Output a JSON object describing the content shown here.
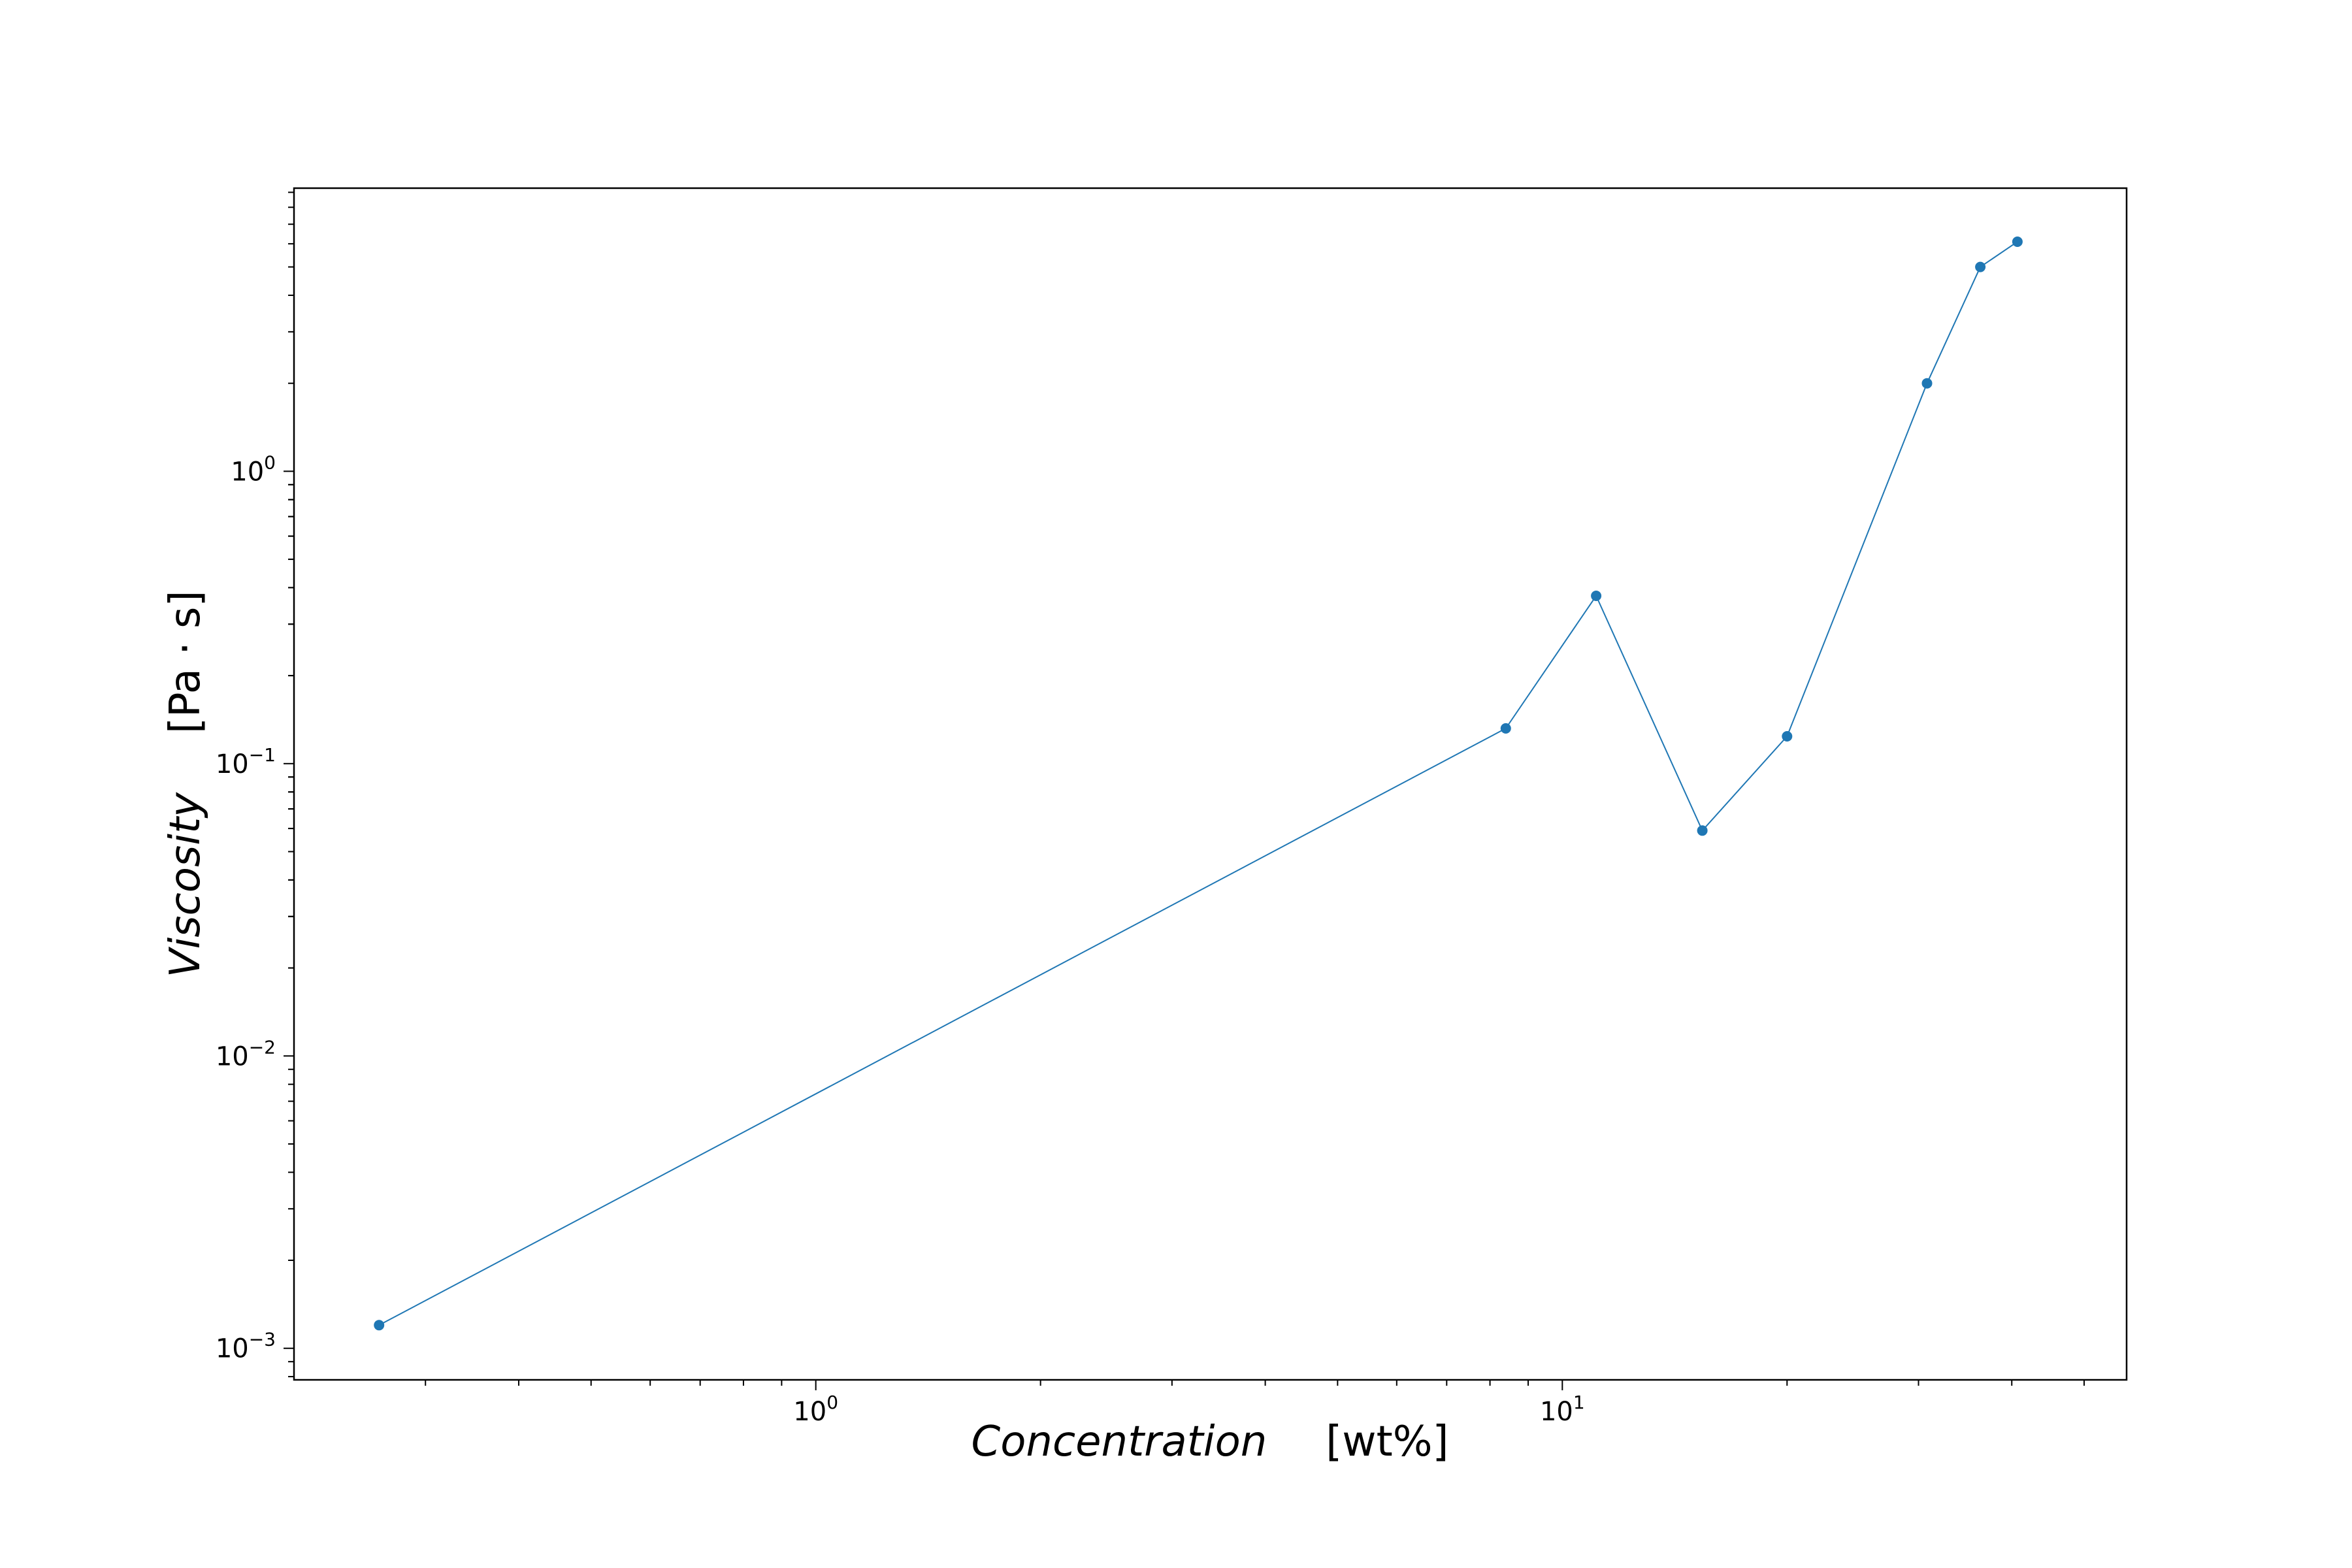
{
  "chart_data": {
    "type": "line",
    "x_scale": "log",
    "y_scale": "log",
    "xlim": [
      0.2,
      57
    ],
    "ylim": [
      0.00078,
      9.3
    ],
    "grid": false,
    "xlabel": {
      "main": "Concentration",
      "unit": "[wt%]"
    },
    "ylabel": {
      "main": "Viscosity",
      "unit": "[Pa · s]"
    },
    "x_ticks": [
      {
        "value": 1,
        "base": "10",
        "exp": "0"
      },
      {
        "value": 10,
        "base": "10",
        "exp": "1"
      }
    ],
    "y_ticks": [
      {
        "value": 0.001,
        "base": "10",
        "exp": "−3"
      },
      {
        "value": 0.01,
        "base": "10",
        "exp": "−2"
      },
      {
        "value": 0.1,
        "base": "10",
        "exp": "−1"
      },
      {
        "value": 1,
        "base": "10",
        "exp": "0"
      }
    ],
    "series": [
      {
        "color": "#1f77b4",
        "x": [
          0.26,
          8.4,
          11.1,
          15.4,
          20.0,
          30.8,
          36.3,
          40.7
        ],
        "y": [
          0.0012,
          0.132,
          0.375,
          0.059,
          0.124,
          2.0,
          5.0,
          6.1
        ]
      }
    ]
  }
}
